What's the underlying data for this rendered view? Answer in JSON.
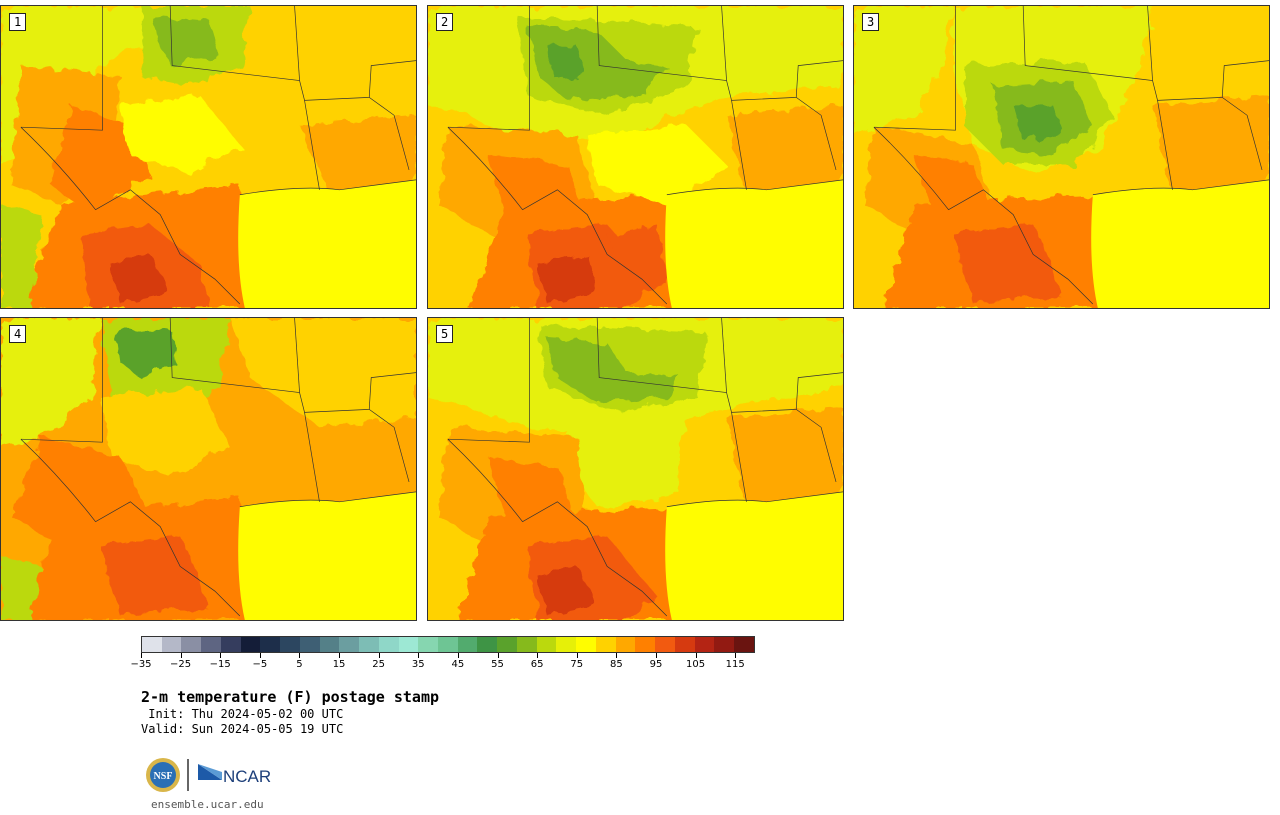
{
  "panels": [
    {
      "label": "1"
    },
    {
      "label": "2"
    },
    {
      "label": "3"
    },
    {
      "label": "4"
    },
    {
      "label": "5"
    }
  ],
  "colorbar": {
    "colors": [
      "#dfe2ea",
      "#b4b8c8",
      "#8a8fa4",
      "#5e6582",
      "#353d5e",
      "#141d38",
      "#1d2e4a",
      "#2c4660",
      "#3e5f74",
      "#548088",
      "#6b9ea0",
      "#7dbdb5",
      "#8fd7c8",
      "#9de8d4",
      "#86d6b0",
      "#6ec594",
      "#52ab6e",
      "#3e9445",
      "#5aa22c",
      "#86ba1c",
      "#bbd90d",
      "#e6f008",
      "#fffd00",
      "#ffd200",
      "#ffa800",
      "#ff8000",
      "#f25a10",
      "#d63a10",
      "#b42414",
      "#921a12",
      "#6a1410"
    ],
    "tick_labels": [
      "−35",
      "−25",
      "−15",
      "−5",
      "5",
      "15",
      "25",
      "35",
      "45",
      "55",
      "65",
      "75",
      "85",
      "95",
      "105",
      "115"
    ]
  },
  "title": "2-m temperature (F) postage stamp",
  "init": " Init: Thu 2024-05-02 00 UTC",
  "valid": "Valid: Sun 2024-05-05 19 UTC",
  "logos": {
    "nsf": "NSF",
    "ncar": "NCAR"
  },
  "url": "ensemble.ucar.edu"
}
